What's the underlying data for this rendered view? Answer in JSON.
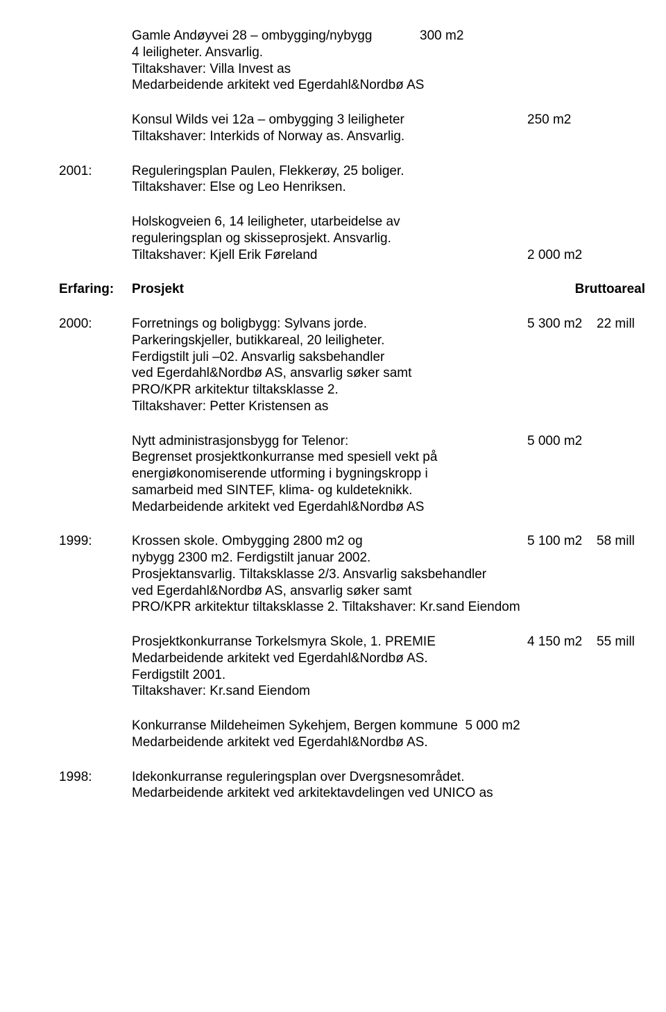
{
  "entries": [
    {
      "year": "",
      "lines": [
        {
          "mid": "Gamle Andøyvei 28 – ombygging/nybygg             300 m2"
        },
        {
          "mid": "4 leiligheter. Ansvarlig."
        },
        {
          "mid": "Tiltakshaver: Villa Invest as"
        },
        {
          "mid": "Medarbeidende arkitekt ved Egerdahl&Nordbø AS"
        }
      ]
    },
    {
      "year": "",
      "lines": [
        {
          "mid": "Konsul Wilds vei 12a – ombygging 3 leiligheter",
          "a": "250 m2"
        },
        {
          "mid": "Tiltakshaver: Interkids of Norway as. Ansvarlig."
        }
      ]
    },
    {
      "year": "2001:",
      "lines": [
        {
          "mid": "Reguleringsplan Paulen, Flekkerøy, 25 boliger."
        },
        {
          "mid": "Tiltakshaver: Else og Leo Henriksen."
        }
      ]
    },
    {
      "year": "",
      "lines": [
        {
          "mid": "Holskogveien 6, 14 leiligheter, utarbeidelse av"
        },
        {
          "mid": "reguleringsplan og skisseprosjekt. Ansvarlig."
        },
        {
          "mid": "Tiltakshaver: Kjell Erik Føreland",
          "a": "2 000 m2"
        }
      ]
    },
    {
      "year": "Erfaring:",
      "bold": true,
      "lines": [
        {
          "mid": "Prosjekt",
          "b": "Bruttoareal",
          "bWide": true
        }
      ]
    },
    {
      "year": "2000:",
      "lines": [
        {
          "mid": "Forretnings og boligbygg: Sylvans jorde.",
          "a": "5 300 m2",
          "b": "22 mill"
        },
        {
          "mid": "Parkeringskjeller, butikkareal, 20 leiligheter."
        },
        {
          "mid": "Ferdigstilt juli –02. Ansvarlig saksbehandler"
        },
        {
          "mid": "ved Egerdahl&Nordbø AS, ansvarlig søker samt"
        },
        {
          "mid": "PRO/KPR arkitektur tiltaksklasse 2."
        },
        {
          "mid": "Tiltakshaver: Petter Kristensen as"
        }
      ]
    },
    {
      "year": "",
      "lines": [
        {
          "mid": "Nytt administrasjonsbygg for Telenor:",
          "a": "5 000 m2"
        },
        {
          "mid": "Begrenset prosjektkonkurranse med spesiell vekt på"
        },
        {
          "mid": "energiøkonomiserende utforming i bygningskropp i"
        },
        {
          "mid": "samarbeid med SINTEF, klima- og kuldeteknikk."
        },
        {
          "mid": "Medarbeidende arkitekt ved Egerdahl&Nordbø AS"
        }
      ]
    },
    {
      "year": "1999:",
      "lines": [
        {
          "mid": "Krossen skole. Ombygging 2800 m2 og",
          "a": "5 100 m2",
          "b": "58 mill"
        },
        {
          "mid": "nybygg 2300 m2. Ferdigstilt januar 2002."
        },
        {
          "mid": "Prosjektansvarlig. Tiltaksklasse 2/3. Ansvarlig saksbehandler"
        },
        {
          "mid": "ved Egerdahl&Nordbø AS, ansvarlig søker samt"
        },
        {
          "mid": "PRO/KPR arkitektur tiltaksklasse 2. Tiltakshaver: Kr.sand Eiendom"
        }
      ]
    },
    {
      "year": "",
      "lines": [
        {
          "mid": "Prosjektkonkurranse Torkelsmyra Skole, 1. PREMIE",
          "a": "4 150 m2",
          "b": "55 mill"
        },
        {
          "mid": "Medarbeidende arkitekt ved Egerdahl&Nordbø AS."
        },
        {
          "mid": "Ferdigstilt 2001."
        },
        {
          "mid": "Tiltakshaver: Kr.sand Eiendom"
        }
      ]
    },
    {
      "year": "",
      "lines": [
        {
          "mid": "Konkurranse Mildeheimen Sykehjem, Bergen kommune  5 000 m2"
        },
        {
          "mid": "Medarbeidende arkitekt ved Egerdahl&Nordbø AS."
        }
      ]
    },
    {
      "year": "1998:",
      "lines": [
        {
          "mid": "Idekonkurranse reguleringsplan over Dvergsnesområdet."
        },
        {
          "mid": "Medarbeidende arkitekt ved arkitektavdelingen ved UNICO as"
        }
      ]
    }
  ]
}
